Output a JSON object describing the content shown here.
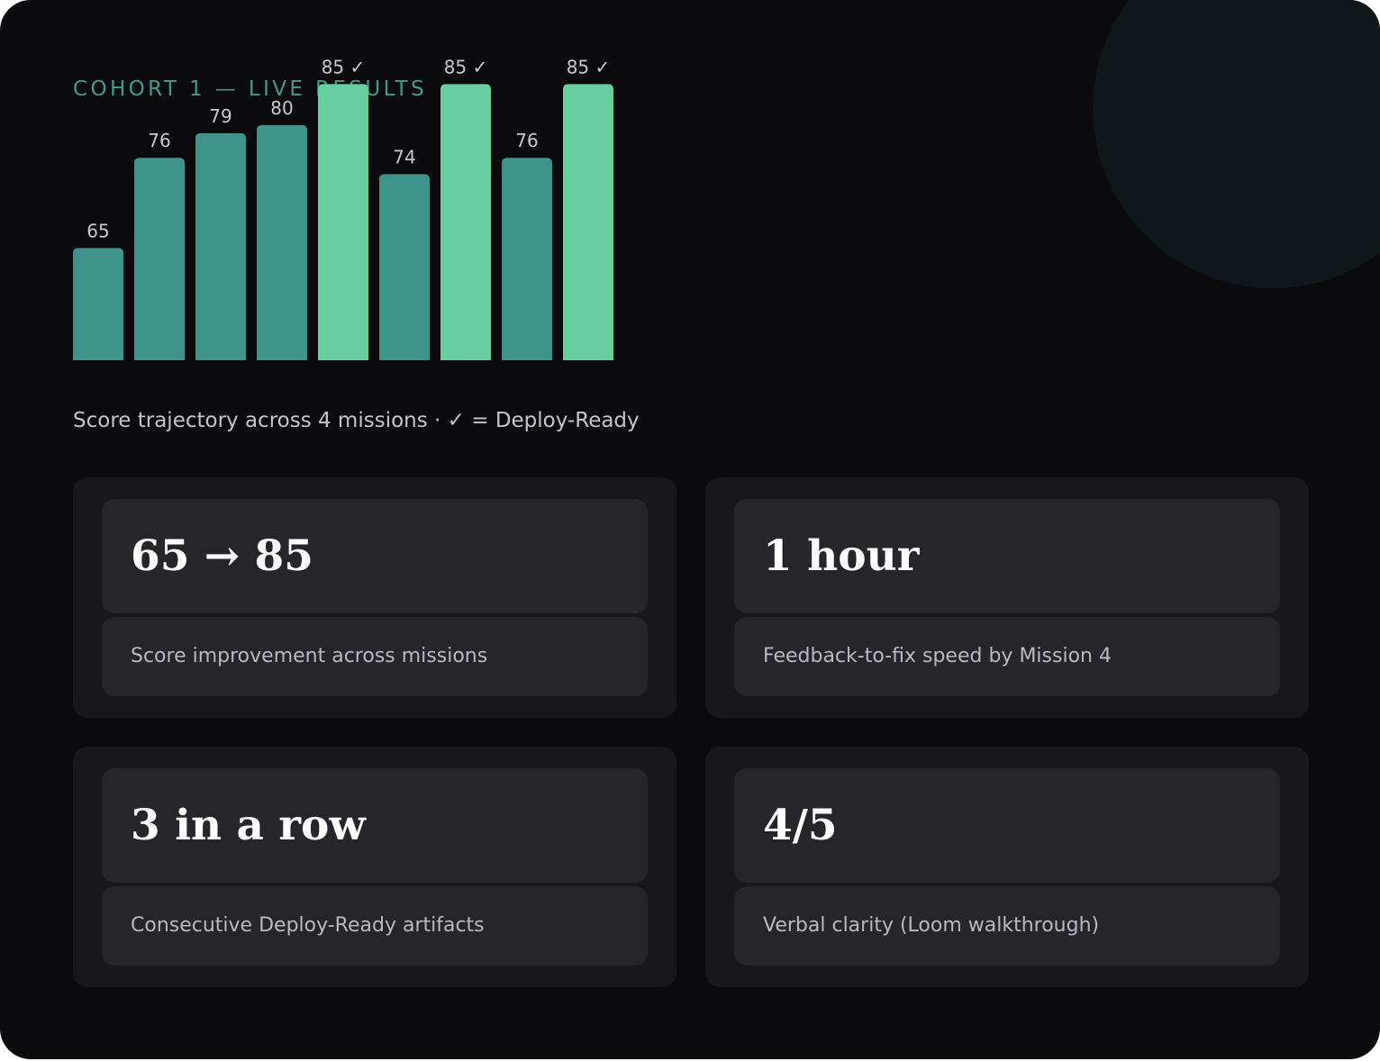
{
  "header": {
    "eyebrow": "COHORT 1 — LIVE RESULTS"
  },
  "chart_data": {
    "type": "bar",
    "values": [
      65,
      76,
      79,
      80,
      85,
      74,
      85,
      76,
      85
    ],
    "labels": [
      "65",
      "76",
      "79",
      "80",
      "85 ✓",
      "74",
      "85 ✓",
      "76",
      "85 ✓"
    ],
    "deploy_ready": [
      false,
      false,
      false,
      false,
      true,
      false,
      true,
      false,
      true
    ],
    "caption": "Score trajectory across 4 missions · ✓ = Deploy-Ready",
    "colors": {
      "default": "#3f9489",
      "deploy_ready": "#67cfa0",
      "label": "#c8c8cf"
    }
  },
  "stats": [
    {
      "value": "65 → 85",
      "label": "Score improvement across missions"
    },
    {
      "value": "1 hour",
      "label": "Feedback-to-fix speed by Mission 4"
    },
    {
      "value": "3 in a row",
      "label": "Consecutive Deploy-Ready artifacts"
    },
    {
      "value": "4/5",
      "label": "Verbal clarity (Loom walkthrough)"
    }
  ]
}
